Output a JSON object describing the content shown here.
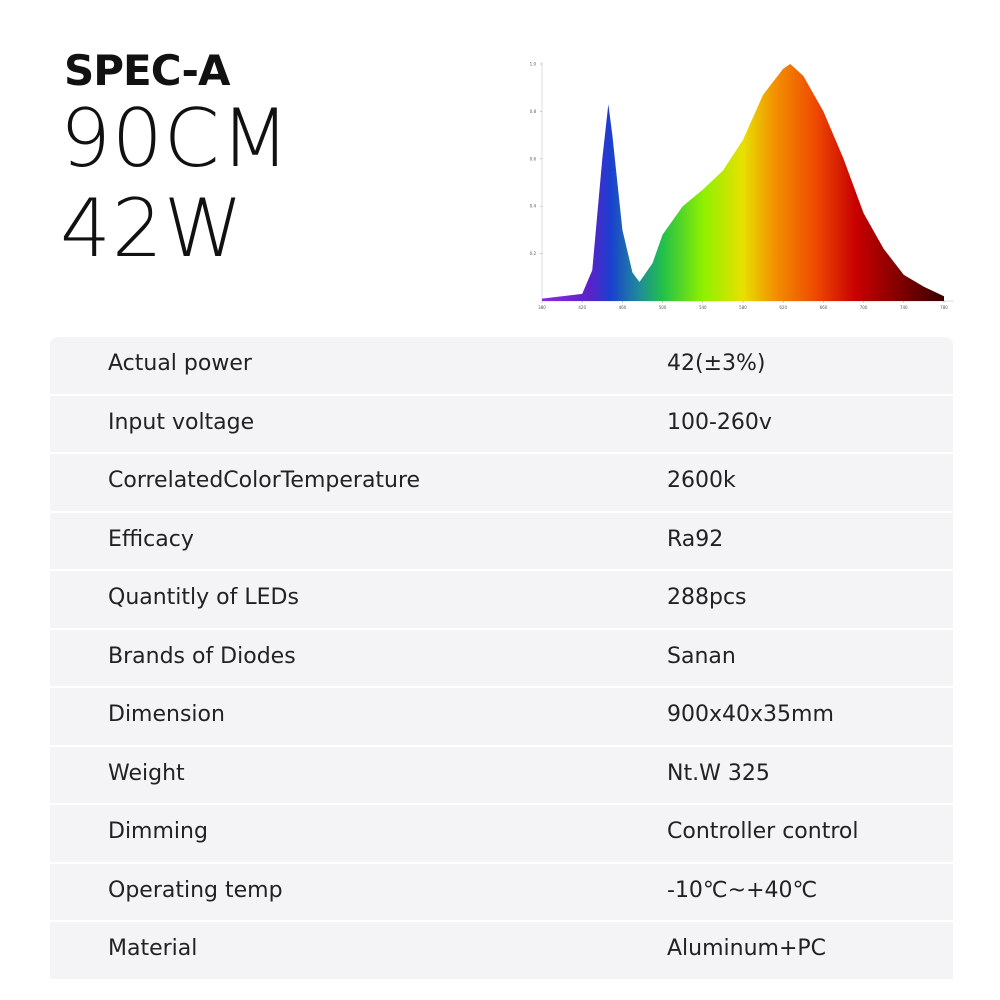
{
  "header": {
    "model": "SPEC-A",
    "length": "90CM",
    "power": "42W"
  },
  "spectrum": {
    "type": "area",
    "x": [
      380,
      420,
      430,
      440,
      446,
      450,
      460,
      470,
      477,
      490,
      500,
      520,
      540,
      560,
      580,
      600,
      620,
      627,
      640,
      660,
      680,
      700,
      720,
      740,
      760,
      780
    ],
    "values": [
      0.01,
      0.03,
      0.13,
      0.6,
      0.83,
      0.7,
      0.3,
      0.12,
      0.08,
      0.16,
      0.28,
      0.4,
      0.47,
      0.55,
      0.68,
      0.87,
      0.98,
      1.0,
      0.95,
      0.8,
      0.6,
      0.37,
      0.22,
      0.11,
      0.06,
      0.02
    ],
    "xlim": [
      380,
      780
    ],
    "ylim": [
      0,
      1
    ],
    "xticks": [
      380,
      420,
      460,
      500,
      540,
      580,
      620,
      660,
      700,
      740,
      780
    ],
    "yticks": [
      0.2,
      0.4,
      0.6,
      0.8,
      {
        "value": 1,
        "label": "1.0"
      }
    ]
  },
  "table": {
    "rows": [
      [
        "Actual power",
        "42(±3%)"
      ],
      [
        "Input voltage",
        "100-260v"
      ],
      [
        "CorrelatedColorTemperature",
        "2600k"
      ],
      [
        "Efficacy",
        "Ra92"
      ],
      [
        "Quantitly of LEDs",
        "288pcs"
      ],
      [
        "Brands of Diodes",
        "Sanan"
      ],
      [
        "Dimension",
        "900x40x35mm"
      ],
      [
        "Weight",
        "Nt.W 325"
      ],
      [
        "Dimming",
        "Controller control"
      ],
      [
        "Operating temp",
        "-10℃~+40℃"
      ],
      [
        "Material",
        "Aluminum+PC"
      ]
    ]
  }
}
